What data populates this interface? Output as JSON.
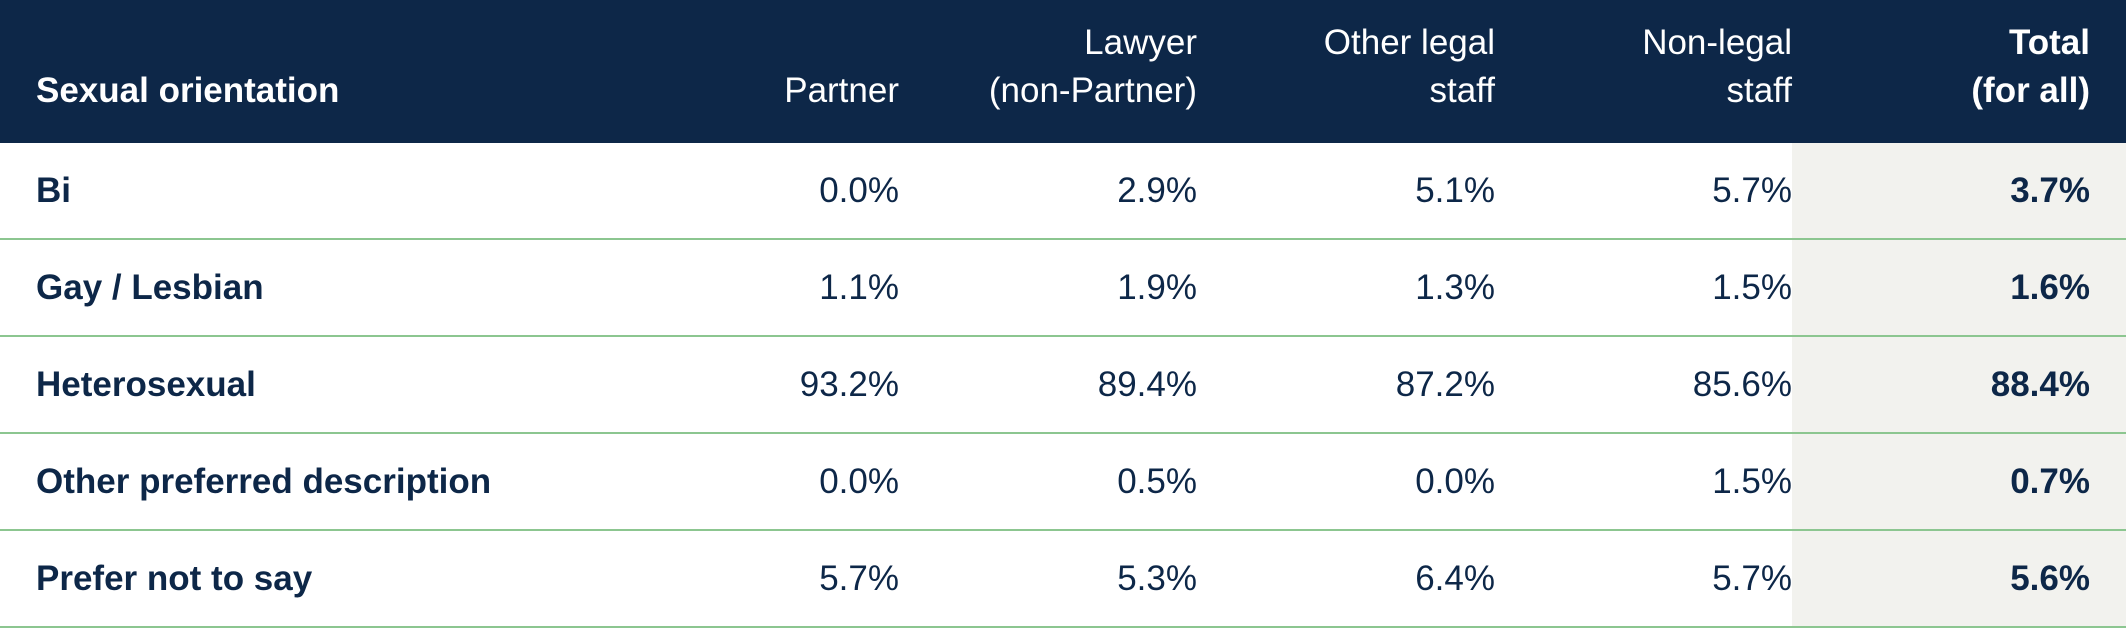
{
  "chart_data": {
    "type": "table",
    "columns": [
      "Sexual orientation",
      "Partner",
      "Lawyer (non-Partner)",
      "Other legal staff",
      "Non-legal staff",
      "Total (for all)"
    ],
    "header": {
      "col0": [
        "Sexual orientation"
      ],
      "col1": [
        "Partner"
      ],
      "col2": [
        "Lawyer",
        "(non-Partner)"
      ],
      "col3": [
        "Other legal",
        "staff"
      ],
      "col4": [
        "Non-legal",
        "staff"
      ],
      "col5": [
        "Total",
        "(for all)"
      ]
    },
    "rows": [
      {
        "label": "Bi",
        "values": [
          "0.0%",
          "2.9%",
          "5.1%",
          "5.7%",
          "3.7%"
        ]
      },
      {
        "label": "Gay / Lesbian",
        "values": [
          "1.1%",
          "1.9%",
          "1.3%",
          "1.5%",
          "1.6%"
        ]
      },
      {
        "label": "Heterosexual",
        "values": [
          "93.2%",
          "89.4%",
          "87.2%",
          "85.6%",
          "88.4%"
        ]
      },
      {
        "label": "Other preferred description",
        "values": [
          "0.0%",
          "0.5%",
          "0.0%",
          "1.5%",
          "0.7%"
        ]
      },
      {
        "label": "Prefer not to say",
        "values": [
          "5.7%",
          "5.3%",
          "6.4%",
          "5.7%",
          "5.6%"
        ]
      }
    ]
  },
  "colors": {
    "header_bg": "#0d2748",
    "header_text": "#ffffff",
    "body_text": "#0d2748",
    "row_divider": "#8cc690",
    "total_column_bg": "#f2f2ee"
  }
}
